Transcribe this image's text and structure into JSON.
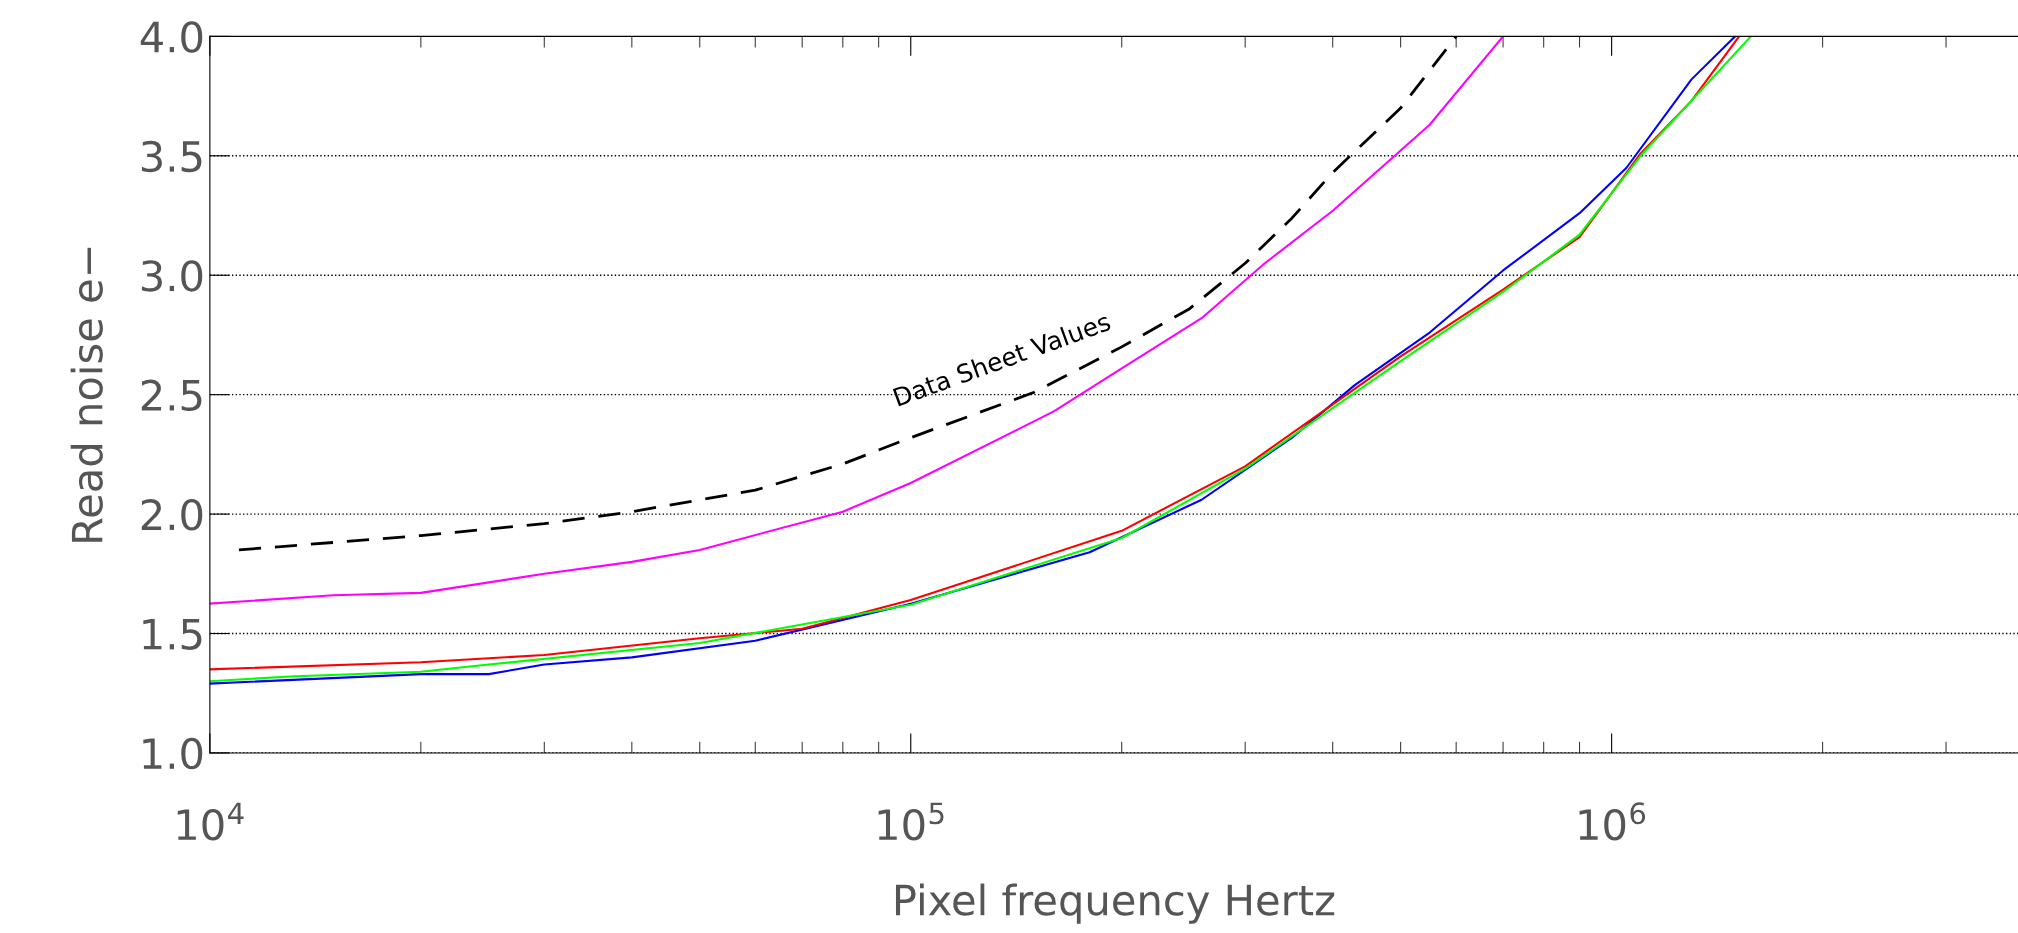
{
  "chart_data": {
    "type": "line",
    "xlabel": "Pixel frequency Hertz",
    "ylabel": "Read noise e−",
    "log": "x",
    "xlim": [
      10000,
      3800000
    ],
    "ylim": [
      1.0,
      4.0
    ],
    "xticks": [
      {
        "value": 10000,
        "label": "10$^{4}$"
      },
      {
        "value": 100000,
        "label": "10$^{5}$"
      },
      {
        "value": 1000000,
        "label": "10$^{6}$"
      }
    ],
    "yticks": [
      {
        "value": 1.0,
        "label": "1.0"
      },
      {
        "value": 1.5,
        "label": "1.5"
      },
      {
        "value": 2.0,
        "label": "2.0"
      },
      {
        "value": 2.5,
        "label": "2.5"
      },
      {
        "value": 3.0,
        "label": "3.0"
      },
      {
        "value": 3.5,
        "label": "3.5"
      },
      {
        "value": 4.0,
        "label": "4.0"
      }
    ],
    "grid": "y",
    "annotations": [
      {
        "text": "Data Sheet Values",
        "x": 150000,
        "y": 2.51
      }
    ],
    "series": [
      {
        "color": "#000000",
        "line_style": "dashed",
        "x": [
          11000,
          20000,
          30000,
          40000,
          60000,
          80000,
          100000,
          150000,
          200000,
          250000,
          300000,
          350000,
          400000,
          500000,
          600000
        ],
        "values": [
          1.85,
          1.91,
          1.96,
          2.01,
          2.1,
          2.21,
          2.32,
          2.51,
          2.7,
          2.86,
          3.05,
          3.24,
          3.43,
          3.7,
          4.0
        ]
      },
      {
        "color": "#ff00ff",
        "x": [
          10000,
          15000,
          20000,
          30000,
          40000,
          50000,
          80000,
          100000,
          160000,
          200000,
          260000,
          320000,
          400000,
          550000,
          700000
        ],
        "values": [
          1.625,
          1.66,
          1.67,
          1.75,
          1.8,
          1.85,
          2.01,
          2.13,
          2.43,
          2.61,
          2.82,
          3.05,
          3.27,
          3.63,
          4.0
        ]
      },
      {
        "color": "#0000ff",
        "x": [
          10000,
          20000,
          25000,
          30000,
          40000,
          60000,
          100000,
          180000,
          260000,
          350000,
          430000,
          550000,
          700000,
          900000,
          1050000,
          1300000,
          1500000
        ],
        "values": [
          1.29,
          1.33,
          1.33,
          1.37,
          1.4,
          1.47,
          1.625,
          1.84,
          2.06,
          2.32,
          2.54,
          2.76,
          3.02,
          3.26,
          3.45,
          3.82,
          4.0
        ]
      },
      {
        "color": "#ff0000",
        "x": [
          10000,
          20000,
          30000,
          50000,
          70000,
          100000,
          200000,
          300000,
          500000,
          700000,
          900000,
          1100000,
          1300000,
          1520000
        ],
        "values": [
          1.35,
          1.38,
          1.41,
          1.48,
          1.52,
          1.64,
          1.93,
          2.2,
          2.66,
          2.94,
          3.16,
          3.51,
          3.73,
          4.0
        ]
      },
      {
        "color": "#00ff00",
        "x": [
          10000,
          13000,
          20000,
          25000,
          50000,
          100000,
          200000,
          300000,
          500000,
          700000,
          900000,
          1100000,
          1580000
        ],
        "values": [
          1.3,
          1.32,
          1.34,
          1.37,
          1.46,
          1.62,
          1.9,
          2.19,
          2.64,
          2.93,
          3.17,
          3.5,
          4.0
        ]
      }
    ]
  }
}
